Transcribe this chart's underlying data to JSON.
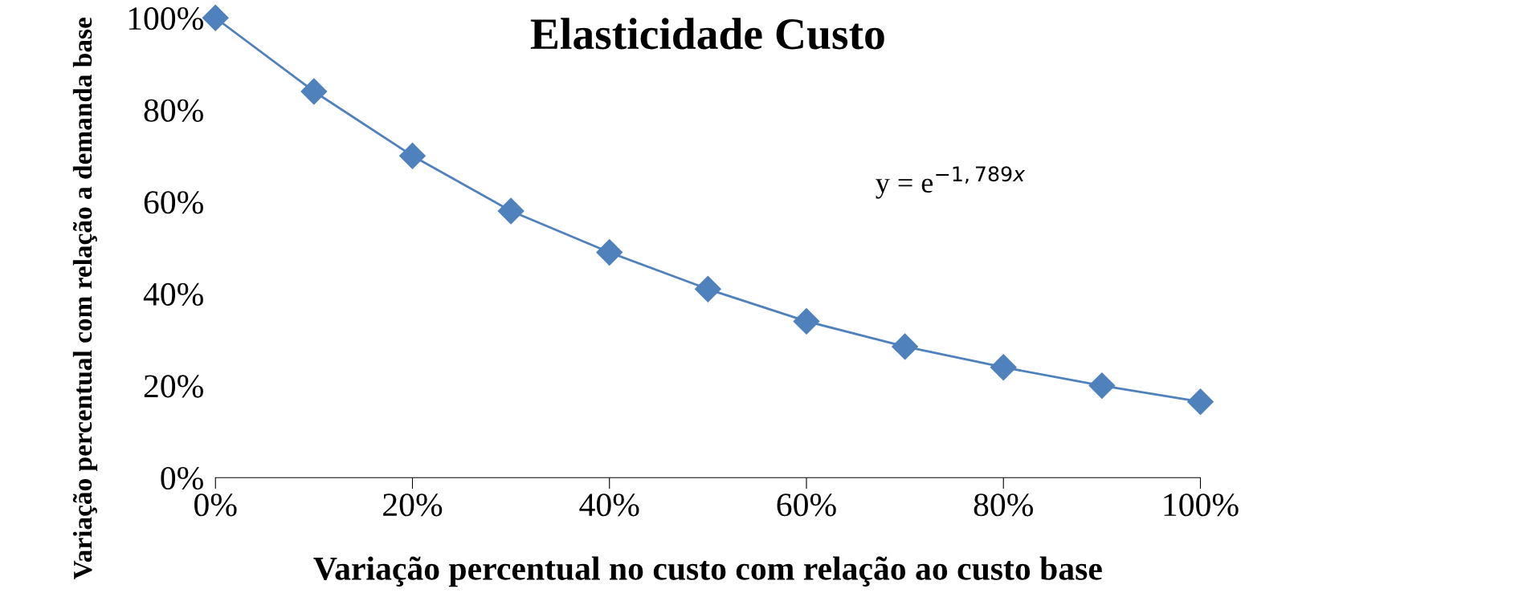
{
  "chart_data": {
    "type": "line",
    "title": "Elasticidade Custo",
    "xlabel": "Variação percentual no custo com relação ao custo base",
    "ylabel": "Variação percentual com relação a demanda base",
    "x": [
      0,
      0.1,
      0.2,
      0.3,
      0.4,
      0.5,
      0.6,
      0.7,
      0.8,
      0.9,
      1.0
    ],
    "series": [
      {
        "color": "#4f81bd",
        "values": [
          1.0,
          0.84,
          0.7,
          0.58,
          0.49,
          0.41,
          0.34,
          0.285,
          0.24,
          0.2,
          0.165
        ]
      }
    ],
    "marker": "diamond",
    "line_style": "solid",
    "grid": false,
    "legend": false,
    "xlim": [
      0,
      1.0
    ],
    "ylim": [
      0,
      1.0
    ],
    "xticks": [
      {
        "value": 0,
        "label": "0%"
      },
      {
        "value": 0.2,
        "label": "20%"
      },
      {
        "value": 0.4,
        "label": "40%"
      },
      {
        "value": 0.6,
        "label": "60%"
      },
      {
        "value": 0.8,
        "label": "80%"
      },
      {
        "value": 1.0,
        "label": "100%"
      }
    ],
    "yticks": [
      {
        "value": 0,
        "label": "0%"
      },
      {
        "value": 0.2,
        "label": "20%"
      },
      {
        "value": 0.4,
        "label": "40%"
      },
      {
        "value": 0.6,
        "label": "60%"
      },
      {
        "value": 0.8,
        "label": "80%"
      },
      {
        "value": 1.0,
        "label": "100%"
      }
    ],
    "annotations": [
      "y = e$^{−1,789x}$"
    ]
  }
}
